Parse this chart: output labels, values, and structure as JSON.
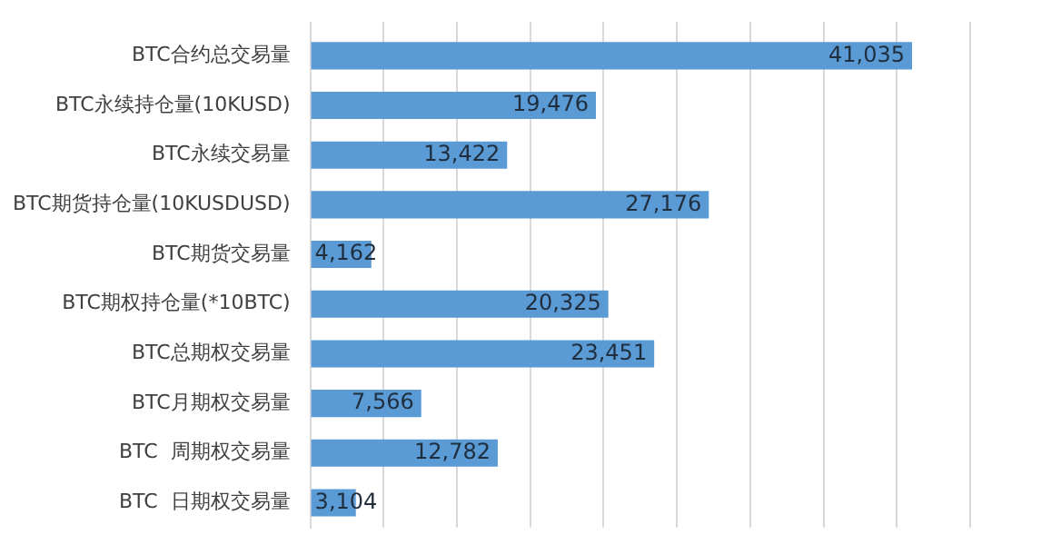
{
  "chart_data": {
    "type": "bar",
    "orientation": "horizontal",
    "categories": [
      "BTC合约总交易量",
      "BTC永续持仓量(10KUSD)",
      "BTC永续交易量",
      "BTC期货持仓量(10KUSDUSD)",
      "BTC期货交易量",
      "BTC期权持仓量(*10BTC)",
      "BTC总期权交易量",
      "BTC月期权交易量",
      "BTC  周期权交易量",
      "BTC  日期权交易量"
    ],
    "values": [
      41035,
      19476,
      13422,
      27176,
      4162,
      20325,
      23451,
      7566,
      12782,
      3104
    ],
    "value_labels": [
      "41,035",
      "19,476",
      "13,422",
      "27,176",
      "4,162",
      "20,325",
      "23,451",
      "7,566",
      "12,782",
      "3,104"
    ],
    "color": "#5b9bd5",
    "grid": "x",
    "tick_labels": "y"
  }
}
